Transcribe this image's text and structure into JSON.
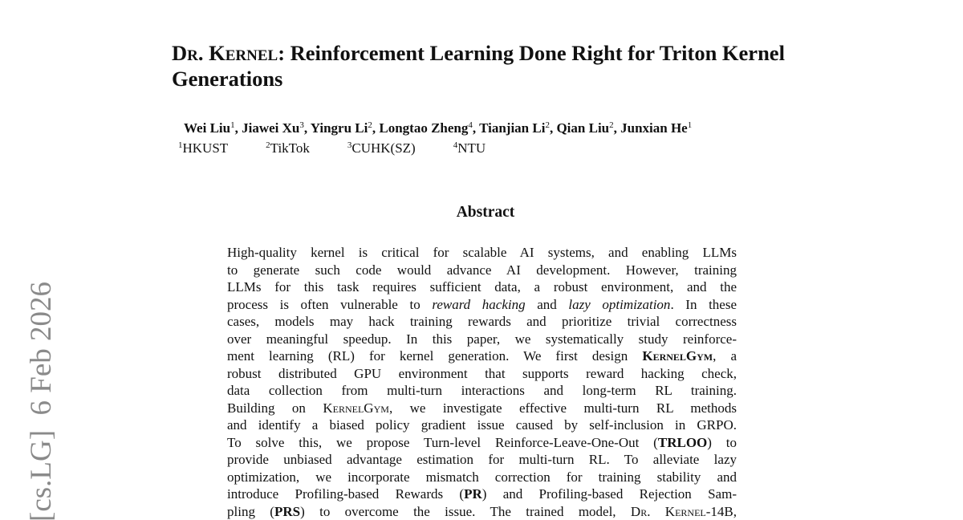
{
  "stamp": "[cs.LG]  6 Feb 2026",
  "header": {
    "title": [
      "Dr. Kernel",
      ": Reinforcement Learning Done Right for Triton Kernel Generations"
    ]
  },
  "authors": [
    {
      "name": "Wei Liu",
      "sup": "1"
    },
    {
      "name": "Jiawei Xu",
      "sup": "3"
    },
    {
      "name": "Yingru Li",
      "sup": "2"
    },
    {
      "name": "Longtao Zheng",
      "sup": "4"
    },
    {
      "name": "Tianjian Li",
      "sup": "2"
    },
    {
      "name": "Qian Liu",
      "sup": "2"
    },
    {
      "name": "Junxian He",
      "sup": "1"
    }
  ],
  "author_separator": ", ",
  "affiliations": [
    {
      "sup": "1",
      "name": "HKUST"
    },
    {
      "sup": "2",
      "name": "TikTok"
    },
    {
      "sup": "3",
      "name": "CUHK(SZ)"
    },
    {
      "sup": "4",
      "name": "NTU"
    }
  ],
  "abstract": {
    "heading": "Abstract",
    "lines": [
      [
        "High-quality kernel is critical for scalable AI systems, and enabling LLMs"
      ],
      [
        "to generate such code would advance AI development. However, training"
      ],
      [
        "LLMs for this task requires sufficient data, a robust environment, and the"
      ],
      [
        "process is often vulnerable to ",
        "reward hacking",
        " and ",
        "lazy optimization",
        ". In these"
      ],
      [
        "cases, models may hack training rewards and prioritize trivial correctness"
      ],
      [
        "over meaningful speedup. In this paper, we systematically study reinforce-"
      ],
      [
        "ment learning (RL) for kernel generation. We first design ",
        "KernelGym",
        ", a"
      ],
      [
        "robust distributed GPU environment that supports reward hacking check,"
      ],
      [
        "data collection from multi-turn interactions and long-term RL training."
      ],
      [
        "Building on ",
        "KernelGym",
        ", we investigate effective multi-turn RL methods"
      ],
      [
        "and identify a biased policy gradient issue caused by self-inclusion in GRPO."
      ],
      [
        "To solve this, we propose Turn-level Reinforce-Leave-One-Out (",
        "TRLOO",
        ") to"
      ],
      [
        "provide unbiased advantage estimation for multi-turn RL. To alleviate lazy"
      ],
      [
        "optimization, we incorporate mismatch correction for training stability and"
      ],
      [
        "introduce Profiling-based Rewards (",
        "PR",
        ") and Profiling-based Rejection Sam-"
      ],
      [
        "pling (",
        "PRS",
        ") to overcome the issue. The trained model, ",
        "Dr. Kernel",
        "-14B,"
      ]
    ]
  }
}
